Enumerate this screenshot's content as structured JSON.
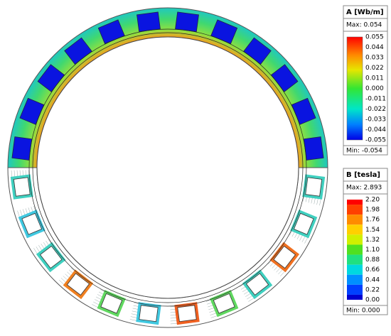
{
  "legends": [
    {
      "title": "A [Wb/m]",
      "max": "Max: 0.054",
      "min": "Min: -0.054",
      "ticks": [
        "0.055",
        "0.044",
        "0.033",
        "0.022",
        "0.011",
        "0.000",
        "-0.011",
        "-0.022",
        "-0.033",
        "-0.044",
        "-0.055"
      ]
    },
    {
      "title": "B [tesla]",
      "max": "Max: 2.893",
      "min": "Min: 0.000",
      "ticks": [
        "2.20",
        "1.98",
        "1.76",
        "1.54",
        "1.32",
        "1.10",
        "0.88",
        "0.66",
        "0.44",
        "0.22",
        "0.00"
      ]
    }
  ]
}
